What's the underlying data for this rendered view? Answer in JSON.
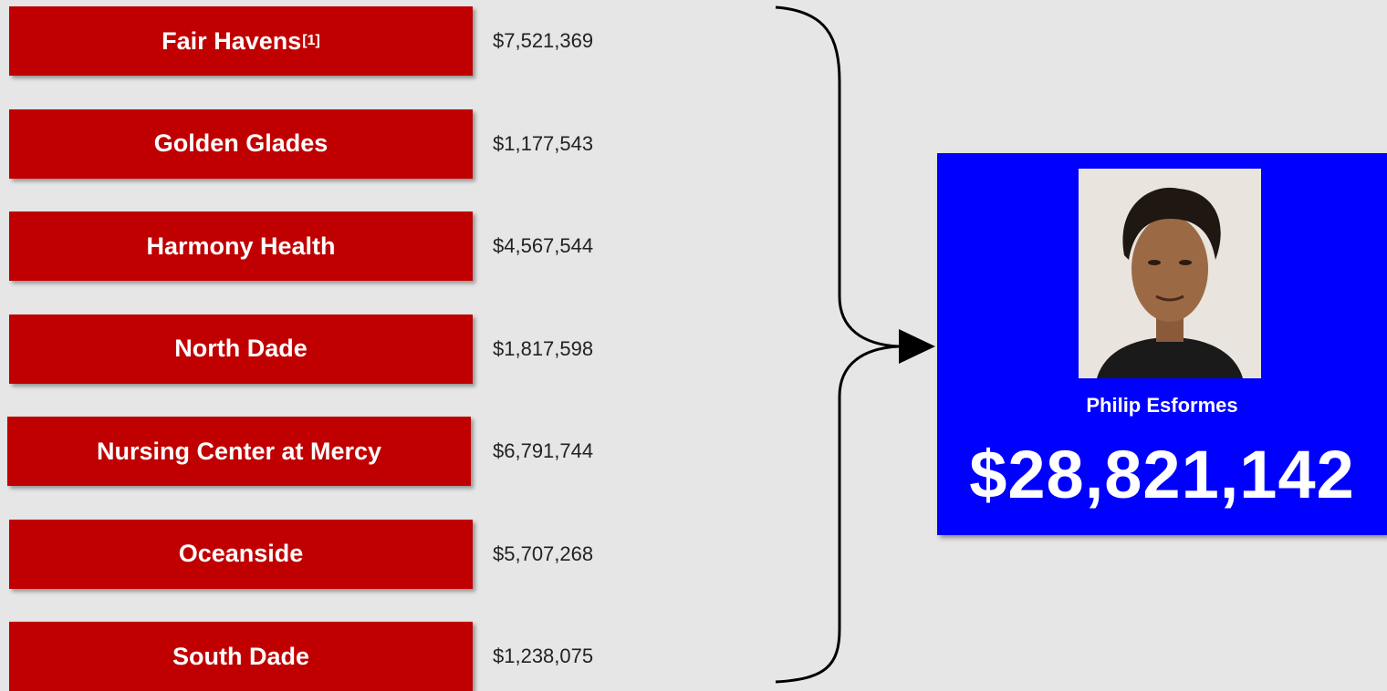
{
  "items": [
    {
      "label": "Fair Havens",
      "note": "[1]",
      "amount": "$7,521,369"
    },
    {
      "label": "Golden Glades",
      "amount": "$1,177,543"
    },
    {
      "label": "Harmony Health",
      "amount": "$4,567,544"
    },
    {
      "label": "North Dade",
      "amount": "$1,817,598"
    },
    {
      "label": "Nursing Center at Mercy",
      "amount": "$6,791,744"
    },
    {
      "label": "Oceanside",
      "amount": "$5,707,268"
    },
    {
      "label": "South Dade",
      "amount": "$1,238,075"
    }
  ],
  "recipient": {
    "name": "Philip Esformes",
    "total": "$28,821,142"
  }
}
